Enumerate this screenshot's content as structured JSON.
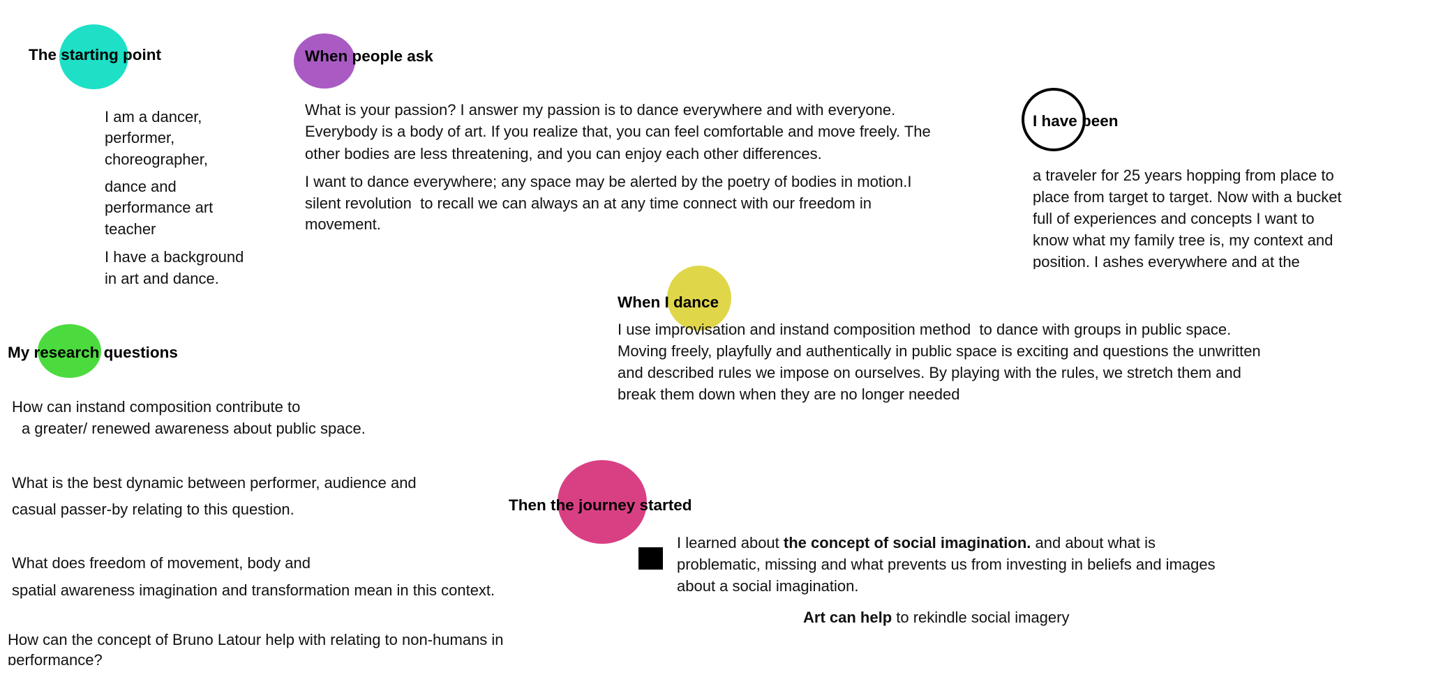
{
  "colors": {
    "starting_point": "#1de0c6",
    "people_ask": "#a95bc3",
    "have_been_ring": "#000000",
    "dance": "#e0d64a",
    "research": "#4cdb3f",
    "journey": "#d94083",
    "square": "#000000"
  },
  "starting_point": {
    "title": "The starting point",
    "lines": [
      "I am a dancer,",
      "performer,",
      "choreographer,",
      "dance and",
      "performance art",
      "teacher",
      "I have a background",
      "in art and dance."
    ]
  },
  "people_ask": {
    "title": "When people ask",
    "lines": [
      "What is your passion? I answer my passion is to dance everywhere and with everyone.",
      "Everybody is a body of art. If you realize that, you can feel comfortable and move freely. The",
      "other bodies are less threatening, and you can enjoy each other differences.",
      "I want to dance everywhere; any space may be alerted by the poetry of bodies in motion.I",
      "silent revolution  to recall we can always an at any time connect with our freedom in",
      "movement."
    ]
  },
  "have_been": {
    "title": "I have been",
    "lines": [
      "a traveler for 25 years hopping from place to",
      "place from target to target. Now with a bucket",
      "full of experiences and concepts I want to",
      "know what my family tree is, my context and",
      "position. I ashes everywhere and at the"
    ]
  },
  "dance": {
    "title": "When I dance",
    "lines": [
      "I use improvisation and instand composition method  to dance with groups in public space.",
      "Moving freely, playfully and authentically in public space is exciting and questions the unwritten",
      "and described rules we impose on ourselves. By playing with the rules, we stretch them and",
      "break them down when they are no longer needed"
    ]
  },
  "research": {
    "title": "My research questions",
    "lines": [
      "How can instand composition contribute to",
      "a greater/ renewed awareness about public space.",
      "What is the best dynamic between performer, audience and",
      "casual passer-by relating to this question.",
      "What does freedom of movement, body and",
      "spatial awareness imagination and transformation mean in this context.",
      "How can the concept of Bruno Latour help with relating to non-humans in",
      "performance?"
    ]
  },
  "journey": {
    "title": "Then the journey started",
    "line1_pre": "I learned about ",
    "line1_bold": "the concept of social imagination.",
    "line1_post": " and about what is",
    "line2": "problematic, missing and what prevents us from investing in beliefs and images",
    "line3": "about a social imagination.",
    "art_bold": "Art can help",
    "art_rest": " to rekindle social imagery"
  }
}
